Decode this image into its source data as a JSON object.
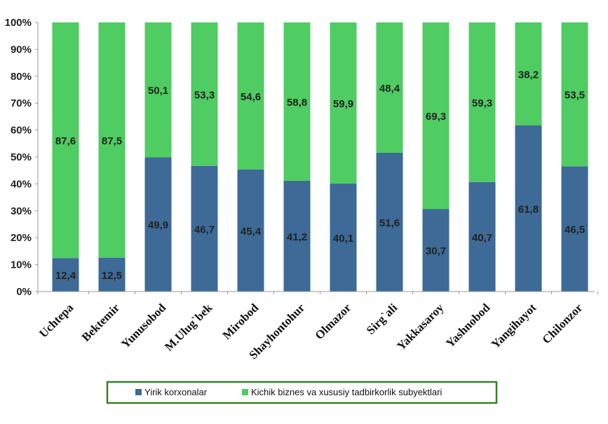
{
  "chart_data": {
    "type": "bar",
    "stacked": true,
    "percent": true,
    "categories": [
      "Uchtepa",
      "Bektemir",
      "Yunusobod",
      "M.Ulug`bek",
      "Mirobod",
      "Shayhontohur",
      "Olmazor",
      "Sirg`ali",
      "Yakkasaroy",
      "Yashnobod",
      "Yangihayot",
      "Chilonzor"
    ],
    "series": [
      {
        "name": "Yirik korxonalar",
        "color": "#3d6a96",
        "values": [
          12.4,
          12.5,
          49.9,
          46.7,
          45.4,
          41.2,
          40.1,
          51.6,
          30.7,
          40.7,
          61.8,
          46.5
        ],
        "labels": [
          "12,4",
          "12,5",
          "49,9",
          "46,7",
          "45,4",
          "41,2",
          "40,1",
          "51,6",
          "30,7",
          "40,7",
          "61,8",
          "46,5"
        ]
      },
      {
        "name": "Kichik biznes va xususiy tadbirkorlik subyektlari",
        "color": "#4fcc62",
        "values": [
          87.6,
          87.5,
          50.1,
          53.3,
          54.6,
          58.8,
          59.9,
          48.4,
          69.3,
          59.3,
          38.2,
          53.5
        ],
        "labels": [
          "87,6",
          "87,5",
          "50,1",
          "53,3",
          "54,6",
          "58,8",
          "59,9",
          "48,4",
          "69,3",
          "59,3",
          "38,2",
          "53,5"
        ]
      }
    ],
    "yticks": [
      "0%",
      "10%",
      "20%",
      "30%",
      "40%",
      "50%",
      "60%",
      "70%",
      "80%",
      "90%",
      "100%"
    ],
    "ylim": [
      0,
      100
    ],
    "grid": false,
    "legend_position": "bottom",
    "legend_border_color": "#3a7d2c"
  }
}
